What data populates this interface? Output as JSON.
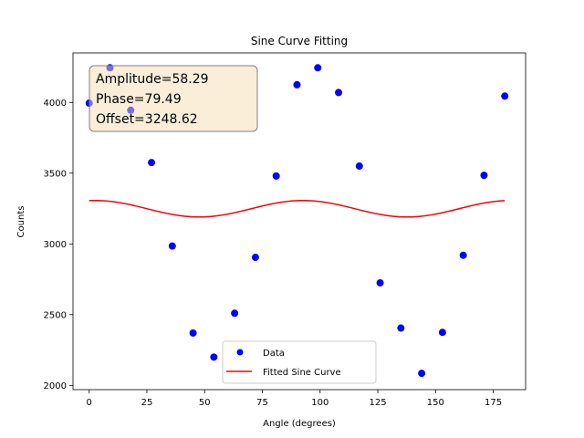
{
  "chart_data": {
    "type": "scatter",
    "title": "Sine Curve Fitting",
    "xlabel": "Angle (degrees)",
    "ylabel": "Counts",
    "xlim": [
      -7,
      189
    ],
    "ylim": [
      1970,
      4350
    ],
    "xticks": [
      0,
      25,
      50,
      75,
      100,
      125,
      150,
      175
    ],
    "yticks": [
      2000,
      2500,
      3000,
      3500,
      4000
    ],
    "grid": false,
    "legend_position": "lower-center",
    "colors": {
      "data": "#0000ff",
      "fit": "#ff0000"
    },
    "series": [
      {
        "name": "Data",
        "kind": "scatter",
        "x": [
          0,
          9,
          18,
          27,
          36,
          45,
          54,
          63,
          72,
          81,
          90,
          99,
          108,
          117,
          126,
          135,
          144,
          153,
          162,
          171,
          180
        ],
        "y": [
          3995,
          4245,
          3945,
          3575,
          2985,
          2370,
          2200,
          2510,
          2905,
          3480,
          4125,
          4245,
          4070,
          3550,
          2725,
          2405,
          2085,
          2375,
          2920,
          3485,
          4045
        ]
      },
      {
        "name": "Fitted Sine Curve",
        "kind": "line",
        "function": "sine",
        "amplitude": 58.29,
        "phase": 79.49,
        "offset": 3248.62,
        "x_range": [
          0,
          180
        ]
      }
    ],
    "annotation": {
      "lines": [
        "Amplitude=58.29",
        "Phase=79.49",
        "Offset=3248.62"
      ]
    }
  }
}
